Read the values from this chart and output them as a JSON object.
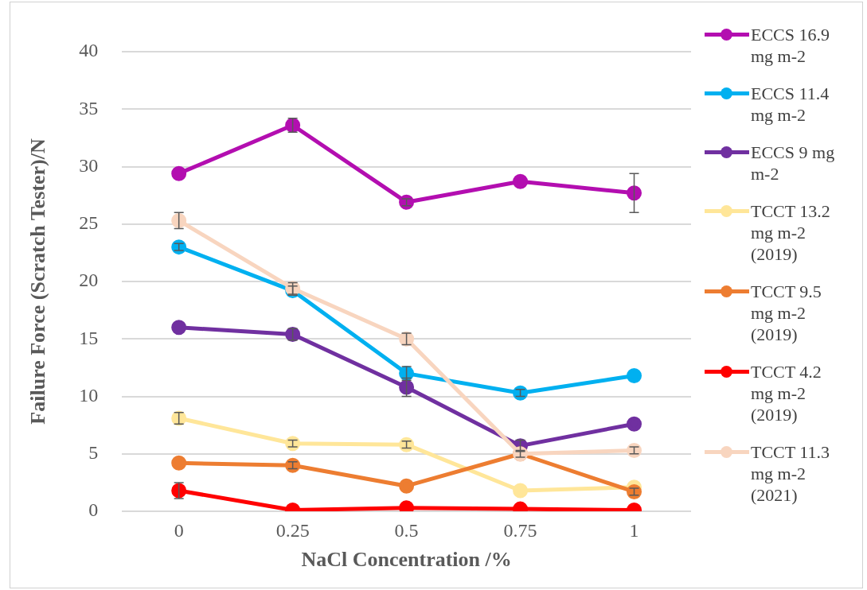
{
  "chart_data": {
    "type": "line",
    "xlabel": "NaCl Concentration /%",
    "ylabel": "Failure Force (Scratch Tester)/N",
    "categories": [
      "0",
      "0.25",
      "0.5",
      "0.75",
      "1"
    ],
    "ylim": [
      0,
      40
    ],
    "yticks": [
      0,
      5,
      10,
      15,
      20,
      25,
      30,
      35,
      40
    ],
    "grid": "y",
    "legend": "right",
    "marker": "circle",
    "line_style": "solid",
    "series": [
      {
        "name": "ECCS 16.9 mg m-2",
        "color": "#b30eb0",
        "values": [
          29.4,
          33.6,
          26.9,
          28.7,
          27.7
        ],
        "errors": [
          null,
          0.6,
          0.3,
          null,
          1.7
        ]
      },
      {
        "name": "ECCS 11.4 mg m-2",
        "color": "#00b0f0",
        "values": [
          23.0,
          19.2,
          12.0,
          10.3,
          11.8
        ],
        "errors": [
          0.3,
          0.4,
          0.6,
          0.3,
          null
        ]
      },
      {
        "name": "ECCS 9 mg m-2",
        "color": "#7030a0",
        "values": [
          16.0,
          15.4,
          10.8,
          5.7,
          7.6
        ],
        "errors": [
          null,
          0.5,
          0.8,
          0.5,
          null
        ]
      },
      {
        "name": "TCCT 13.2 mg m-2 (2019)",
        "color": "#ffe699",
        "values": [
          8.1,
          5.9,
          5.8,
          1.8,
          2.1
        ],
        "errors": [
          0.5,
          0.3,
          0.3,
          null,
          null
        ]
      },
      {
        "name": "TCCT 9.5 mg m-2 (2019)",
        "color": "#ed7d31",
        "values": [
          4.2,
          4.0,
          2.2,
          5.0,
          1.7
        ],
        "errors": [
          null,
          0.3,
          null,
          null,
          0.3
        ]
      },
      {
        "name": "TCCT 4.2 mg m-2 (2019)",
        "color": "#ff0000",
        "values": [
          1.8,
          0.1,
          0.3,
          0.2,
          0.1
        ],
        "errors": [
          0.7,
          null,
          null,
          null,
          null
        ]
      },
      {
        "name": "TCCT 11.3 mg m-2 (2021)",
        "color": "#f8d5bf",
        "values": [
          25.3,
          19.4,
          15.0,
          5.0,
          5.3
        ],
        "errors": [
          0.7,
          0.5,
          0.5,
          0.3,
          0.3
        ]
      }
    ]
  }
}
